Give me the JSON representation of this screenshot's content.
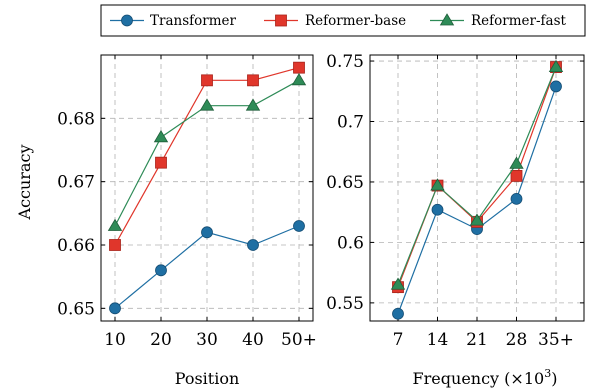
{
  "legend": {
    "entries": [
      {
        "name": "Transformer",
        "color": "#1f6fa3",
        "marker": "circle"
      },
      {
        "name": "Reformer-base",
        "color": "#e0362b",
        "marker": "square"
      },
      {
        "name": "Reformer-fast",
        "color": "#2e8b57",
        "marker": "triangle"
      }
    ]
  },
  "chart_data": [
    {
      "type": "line",
      "xlabel": "Position",
      "ylabel": "Accuracy",
      "categories": [
        "10",
        "20",
        "30",
        "40",
        "50+"
      ],
      "ylim": [
        0.648,
        0.69
      ],
      "yticks": [
        0.65,
        0.66,
        0.67,
        0.68
      ],
      "ytick_labels": [
        "0.65",
        "0.66",
        "0.67",
        "0.68"
      ],
      "grid": true,
      "series": [
        {
          "name": "Transformer",
          "values": [
            0.65,
            0.656,
            0.662,
            0.66,
            0.663
          ]
        },
        {
          "name": "Reformer-base",
          "values": [
            0.66,
            0.673,
            0.686,
            0.686,
            0.688
          ]
        },
        {
          "name": "Reformer-fast",
          "values": [
            0.663,
            0.677,
            0.682,
            0.682,
            0.686
          ]
        }
      ]
    },
    {
      "type": "line",
      "xlabel": "Frequency (×10",
      "xlabel_sup": "3",
      "xlabel_end": ")",
      "ylabel": "",
      "categories": [
        "7",
        "14",
        "21",
        "28",
        "35+"
      ],
      "ylim": [
        0.535,
        0.755
      ],
      "yticks": [
        0.55,
        0.6,
        0.65,
        0.7,
        0.75
      ],
      "ytick_labels": [
        "0.55",
        "0.6",
        "0.65",
        "0.7",
        "0.75"
      ],
      "grid": true,
      "series": [
        {
          "name": "Transformer",
          "values": [
            0.541,
            0.627,
            0.611,
            0.636,
            0.729
          ]
        },
        {
          "name": "Reformer-base",
          "values": [
            0.563,
            0.647,
            0.617,
            0.655,
            0.745
          ]
        },
        {
          "name": "Reformer-fast",
          "values": [
            0.565,
            0.647,
            0.618,
            0.665,
            0.745
          ]
        }
      ]
    }
  ]
}
